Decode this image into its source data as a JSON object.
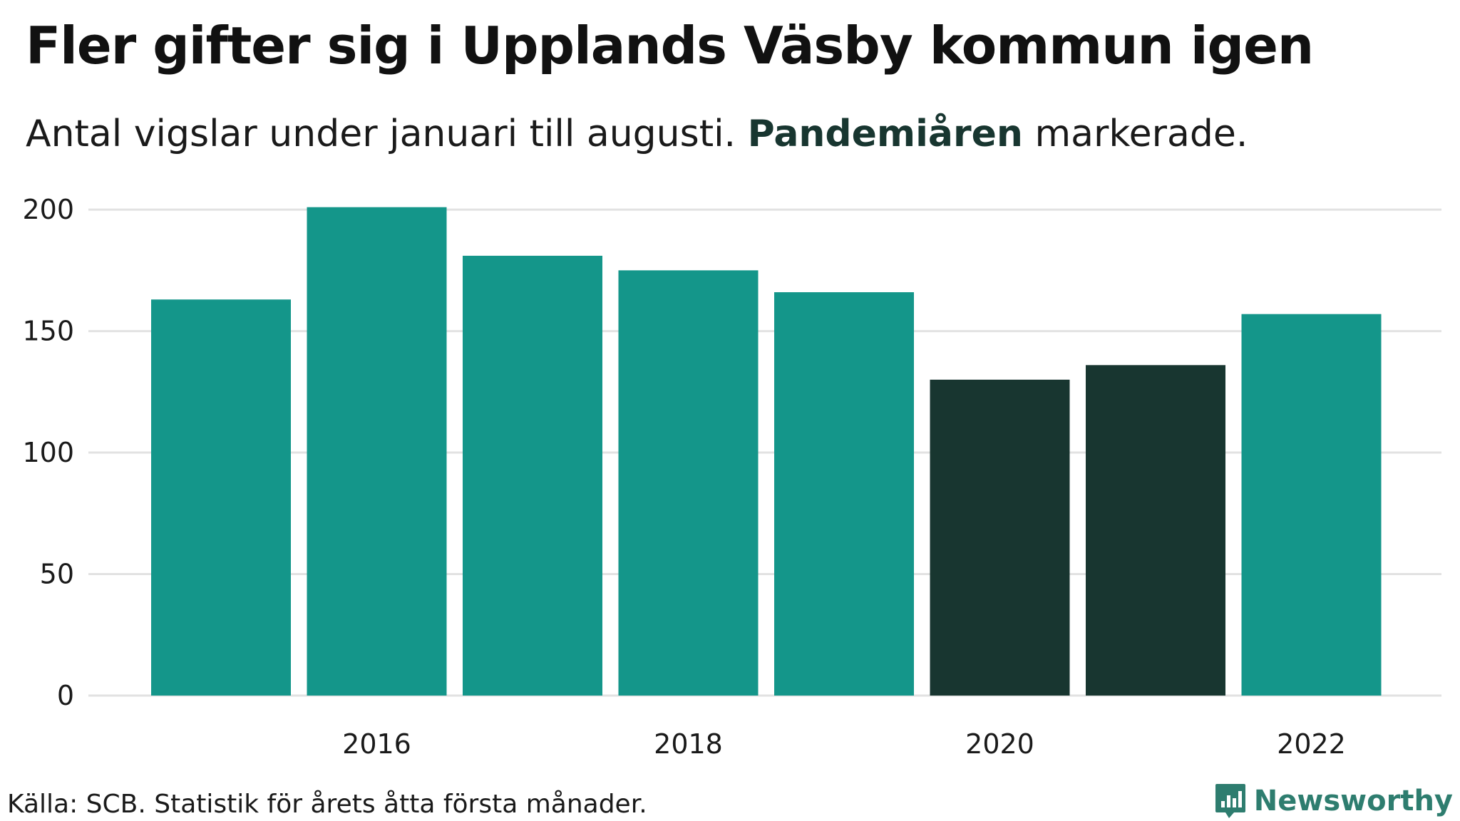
{
  "header": {
    "title": "Fler gifter sig i Upplands Väsby kommun igen",
    "subtitle_before": "Antal vigslar under januari till augusti. ",
    "subtitle_highlight": "Pandemiåren",
    "subtitle_after": " markerade."
  },
  "footer": {
    "source": "Källa: SCB. Statistik för årets åtta första månader.",
    "brand": "Newsworthy"
  },
  "colors": {
    "normal_bar": "#14968A",
    "highlight_bar": "#183630",
    "grid": "#e2e2e2",
    "brand": "#2e7d6f",
    "highlight_text": "#183630"
  },
  "chart_data": {
    "type": "bar",
    "title": "Fler gifter sig i Upplands Väsby kommun igen",
    "subtitle": "Antal vigslar under januari till augusti. Pandemiåren markerade.",
    "xlabel": "",
    "ylabel": "",
    "categories": [
      "2015",
      "2016",
      "2017",
      "2018",
      "2019",
      "2020",
      "2021",
      "2022"
    ],
    "values": [
      163,
      201,
      181,
      175,
      166,
      130,
      136,
      157
    ],
    "highlighted": [
      "2020",
      "2021"
    ],
    "x_tick_labels": [
      "2016",
      "2018",
      "2020",
      "2022"
    ],
    "y_ticks": [
      0,
      50,
      100,
      150,
      200
    ],
    "y_tick_labels": [
      "0",
      "50",
      "100",
      "150",
      "200"
    ],
    "ylim": [
      0,
      210
    ],
    "grid": true,
    "legend": false
  }
}
